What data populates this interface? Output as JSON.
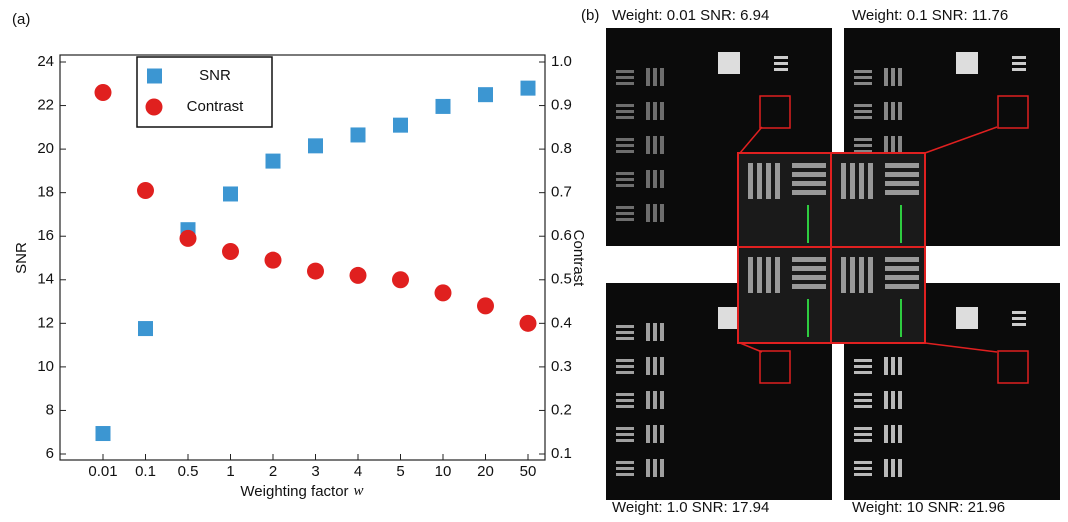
{
  "chart_data": {
    "type": "scatter",
    "panel_label": "(a)",
    "x_label": "Weighting factor",
    "x_label_symbol": "w",
    "y_label": "SNR",
    "y2_label": "Contrast",
    "categories": [
      "0.01",
      "0.1",
      "0.5",
      "1",
      "2",
      "3",
      "4",
      "5",
      "10",
      "20",
      "50"
    ],
    "series": [
      {
        "name": "SNR",
        "color": "#3c96d2",
        "marker": "square",
        "values": [
          6.94,
          11.76,
          16.3,
          17.94,
          19.45,
          20.15,
          20.65,
          21.1,
          21.96,
          22.5,
          22.8
        ]
      },
      {
        "name": "Contrast",
        "color": "#e0201f",
        "marker": "circle",
        "axis": "y2",
        "values": [
          0.93,
          0.705,
          0.595,
          0.565,
          0.545,
          0.52,
          0.51,
          0.5,
          0.47,
          0.44,
          0.4
        ]
      }
    ],
    "ylim": [
      6,
      24
    ],
    "yticks": [
      6,
      8,
      10,
      12,
      14,
      16,
      18,
      20,
      22,
      24
    ],
    "y2lim": [
      0.1,
      1.0
    ],
    "y2ticks": [
      0.1,
      0.2,
      0.3,
      0.4,
      0.5,
      0.6,
      0.7,
      0.8,
      0.9,
      {
        "value": 1.0,
        "label": "1.0"
      }
    ],
    "legend": "upper left"
  },
  "figure_b": {
    "panel_label": "(b)",
    "images": [
      {
        "caption": "Weight: 0.01  SNR: 6.94"
      },
      {
        "caption": "Weight: 0.1  SNR: 11.76"
      },
      {
        "caption": "Weight: 1.0 SNR: 17.94"
      },
      {
        "caption": "Weight: 10  SNR: 21.96"
      }
    ]
  }
}
